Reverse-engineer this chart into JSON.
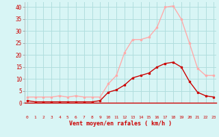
{
  "x": [
    0,
    1,
    2,
    3,
    4,
    5,
    6,
    7,
    8,
    9,
    10,
    11,
    12,
    13,
    14,
    15,
    16,
    17,
    18,
    19,
    20,
    21,
    22,
    23
  ],
  "rafales": [
    2.5,
    2.5,
    2.5,
    2.5,
    3.0,
    2.5,
    3.0,
    2.5,
    2.5,
    2.5,
    8.0,
    11.5,
    21.0,
    26.5,
    26.5,
    27.5,
    31.5,
    40.0,
    40.5,
    35.0,
    25.0,
    14.5,
    11.5,
    11.5
  ],
  "moyen": [
    1.0,
    0.5,
    0.5,
    0.5,
    0.5,
    0.5,
    0.5,
    0.5,
    0.5,
    1.0,
    4.5,
    5.5,
    7.5,
    10.5,
    11.5,
    12.5,
    15.0,
    16.5,
    17.0,
    15.0,
    9.0,
    4.5,
    3.0,
    2.5
  ],
  "color_rafales": "#ffaaaa",
  "color_moyen": "#cc0000",
  "bg_color": "#d8f5f5",
  "grid_color": "#b0dede",
  "xlabel": "Vent moyen/en rafales ( km/h )",
  "ylabel_ticks": [
    0,
    5,
    10,
    15,
    20,
    25,
    30,
    35,
    40
  ],
  "ylim": [
    0,
    42
  ],
  "xlim": [
    -0.3,
    23.3
  ]
}
